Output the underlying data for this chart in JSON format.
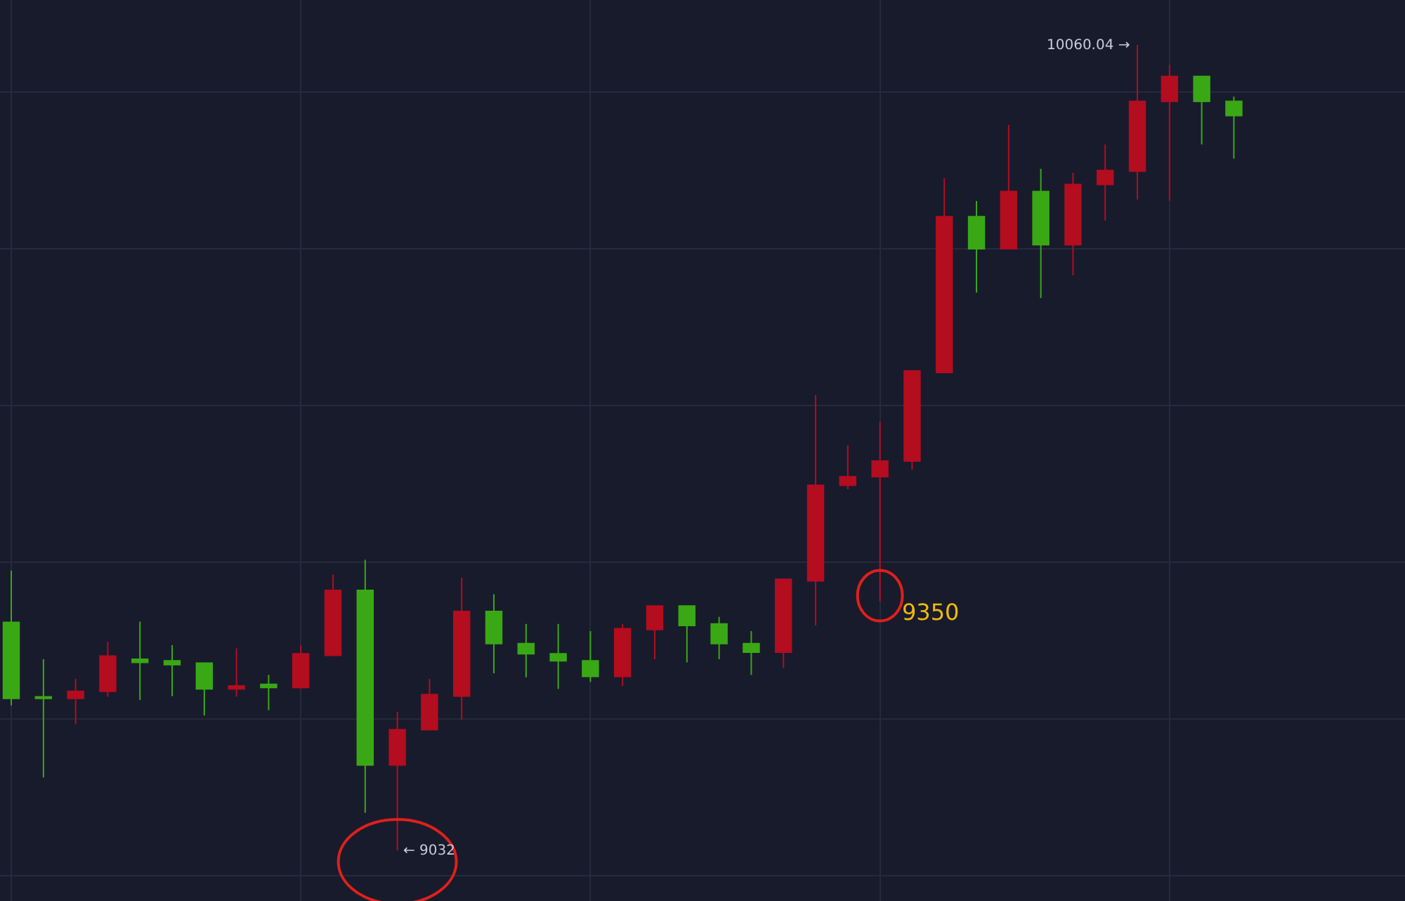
{
  "chart_data": {
    "type": "candlestick",
    "categories": [
      null,
      null,
      null,
      null,
      null,
      null,
      null,
      null,
      null,
      null,
      null,
      null,
      null,
      null,
      null,
      null,
      null,
      null,
      null,
      null,
      null,
      null,
      null,
      null,
      null,
      null,
      null,
      null,
      null,
      null,
      null,
      null,
      null,
      null,
      null,
      null,
      null,
      null,
      null
    ],
    "ohlc": [
      [
        9323,
        9389,
        9217,
        9226
      ],
      [
        9228,
        9276,
        9125,
        9226
      ],
      [
        9226,
        9251,
        9193,
        9235
      ],
      [
        9235,
        9298,
        9228,
        9280
      ],
      [
        9276,
        9324,
        9224,
        9272
      ],
      [
        9274,
        9294,
        9229,
        9269
      ],
      [
        9271,
        9271,
        9204,
        9238
      ],
      [
        9238,
        9290,
        9228,
        9242
      ],
      [
        9244,
        9256,
        9211,
        9240
      ],
      [
        9240,
        9294,
        9238,
        9283
      ],
      [
        9281,
        9384,
        9280,
        9364
      ],
      [
        9364,
        9403,
        9080,
        9141
      ],
      [
        9141,
        9209,
        9032,
        9186
      ],
      [
        9186,
        9251,
        9186,
        9231
      ],
      [
        9229,
        9380,
        9199,
        9337
      ],
      [
        9337,
        9359,
        9258,
        9296
      ],
      [
        9296,
        9321,
        9253,
        9283
      ],
      [
        9283,
        9321,
        9238,
        9274
      ],
      [
        9274,
        9312,
        9247,
        9254
      ],
      [
        9254,
        9321,
        9242,
        9315
      ],
      [
        9314,
        9344,
        9276,
        9344
      ],
      [
        9344,
        9344,
        9272,
        9319
      ],
      [
        9321,
        9330,
        9276,
        9296
      ],
      [
        9296,
        9312,
        9256,
        9285
      ],
      [
        9285,
        9378,
        9265,
        9378
      ],
      [
        9376,
        9613,
        9319,
        9498
      ],
      [
        9498,
        9549,
        9493,
        9509
      ],
      [
        9509,
        9579,
        9350,
        9529
      ],
      [
        9529,
        9644,
        9518,
        9644
      ],
      [
        9642,
        9890,
        9642,
        9841
      ],
      [
        9841,
        9861,
        9744,
        9800
      ],
      [
        9800,
        9958,
        9800,
        9873
      ],
      [
        9873,
        9902,
        9737,
        9805
      ],
      [
        9805,
        9897,
        9766,
        9882
      ],
      [
        9882,
        9933,
        9836,
        9900
      ],
      [
        9899,
        10060.04,
        9863,
        9988
      ],
      [
        9988,
        10035,
        9861,
        10020
      ],
      [
        10020,
        10020,
        9933,
        9988
      ],
      [
        9988,
        9994,
        9915,
        9970
      ]
    ],
    "colors": [
      "#3aa815",
      "#3aa815",
      "#b30d1f",
      "#b30d1f",
      "#3aa815",
      "#3aa815",
      "#3aa815",
      "#b30d1f",
      "#3aa815",
      "#b30d1f",
      "#b30d1f",
      "#3aa815",
      "#b30d1f",
      "#b30d1f",
      "#b30d1f",
      "#3aa815",
      "#3aa815",
      "#3aa815",
      "#3aa815",
      "#b30d1f",
      "#b30d1f",
      "#3aa815",
      "#3aa815",
      "#3aa815",
      "#b30d1f",
      "#b30d1f",
      "#b30d1f",
      "#b30d1f",
      "#b30d1f",
      "#b30d1f",
      "#3aa815",
      "#b30d1f",
      "#3aa815",
      "#b30d1f",
      "#b30d1f",
      "#b30d1f",
      "#b30d1f",
      "#3aa815",
      "#3aa815"
    ],
    "annotations": [
      "10060.04 →",
      "← 9032",
      "9350"
    ],
    "grid": true
  }
}
